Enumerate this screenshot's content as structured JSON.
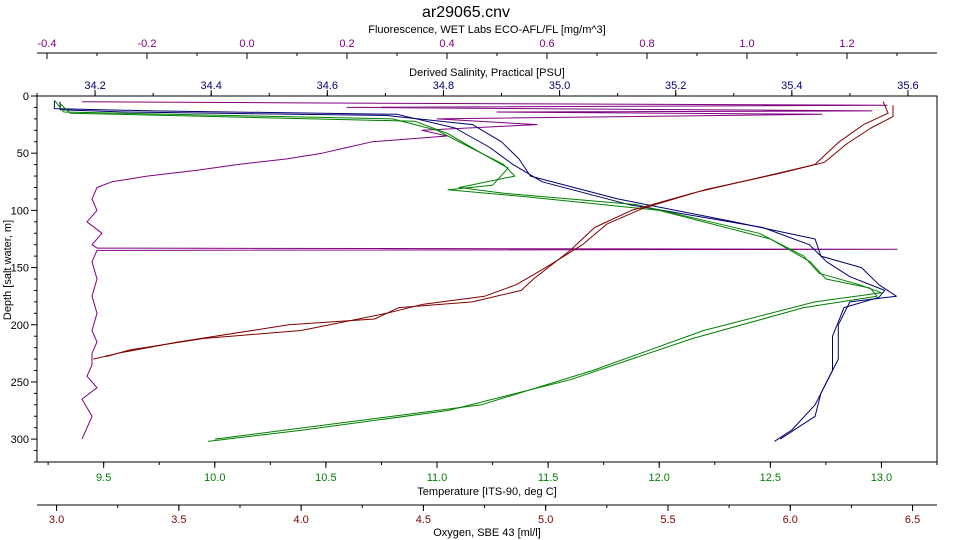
{
  "chart_data": {
    "type": "line",
    "title": "ar29065.cnv",
    "colors": {
      "fluorescence": "#800080",
      "salinity": "#00006f",
      "temperature": "#008000",
      "oxygen": "#800000",
      "frame": "#000000"
    },
    "axes": {
      "depth": {
        "label": "Depth [salt water, m]",
        "range": [
          0,
          320
        ],
        "ticks": [
          0,
          50,
          100,
          150,
          200,
          250,
          300
        ],
        "tick_labels": [
          "0",
          "50",
          "100",
          "150",
          "200",
          "250",
          "300"
        ]
      },
      "fluorescence": {
        "label": "Fluorescence, WET Labs ECO-AFL/FL [mg/m^3]",
        "position": "top",
        "range": [
          -0.42,
          1.38
        ],
        "ticks": [
          -0.4,
          -0.2,
          0.0,
          0.2,
          0.4,
          0.6,
          0.8,
          1.0,
          1.2
        ],
        "tick_labels": [
          "-0.4",
          "-0.2",
          "0.0",
          "0.2",
          "0.4",
          "0.6",
          "0.8",
          "1.0",
          "1.2"
        ]
      },
      "salinity": {
        "label": "Derived Salinity, Practical [PSU]",
        "position": "top",
        "range": [
          34.1,
          35.65
        ],
        "ticks": [
          34.2,
          34.4,
          34.6,
          34.8,
          35.0,
          35.2,
          35.4,
          35.6
        ],
        "tick_labels": [
          "34.2",
          "34.4",
          "34.6",
          "34.8",
          "35.0",
          "35.2",
          "35.4",
          "35.6"
        ]
      },
      "temperature": {
        "label": "Temperature [ITS-90, deg C]",
        "position": "bottom",
        "range": [
          9.2,
          13.25
        ],
        "ticks": [
          9.5,
          10.0,
          10.5,
          11.0,
          11.5,
          12.0,
          12.5,
          13.0
        ],
        "tick_labels": [
          "9.5",
          "10.0",
          "10.5",
          "11.0",
          "11.5",
          "12.0",
          "12.5",
          "13.0"
        ]
      },
      "oxygen": {
        "label": "Oxygen, SBE 43 [ml/l]",
        "position": "bottom",
        "range": [
          2.92,
          6.6
        ],
        "ticks": [
          3.0,
          3.5,
          4.0,
          4.5,
          5.0,
          5.5,
          6.0,
          6.5
        ],
        "tick_labels": [
          "3.0",
          "3.5",
          "4.0",
          "4.5",
          "5.0",
          "5.5",
          "6.0",
          "6.5"
        ]
      }
    },
    "series": [
      {
        "axis": "fluorescence",
        "color": "#800080",
        "points": [
          [
            -0.33,
            5
          ],
          [
            0.1,
            6
          ],
          [
            1.28,
            8
          ],
          [
            0.2,
            10
          ],
          [
            1.25,
            13
          ],
          [
            0.5,
            14
          ],
          [
            1.15,
            16
          ],
          [
            0.38,
            20
          ],
          [
            0.58,
            25
          ],
          [
            0.35,
            30
          ],
          [
            0.4,
            35
          ],
          [
            0.25,
            40
          ],
          [
            0.2,
            45
          ],
          [
            0.15,
            50
          ],
          [
            0.08,
            55
          ],
          [
            -0.02,
            60
          ],
          [
            -0.1,
            65
          ],
          [
            -0.2,
            70
          ],
          [
            -0.27,
            75
          ],
          [
            -0.3,
            80
          ],
          [
            -0.31,
            90
          ],
          [
            -0.3,
            100
          ],
          [
            -0.32,
            110
          ],
          [
            -0.29,
            120
          ],
          [
            -0.31,
            130
          ],
          [
            -0.3,
            133
          ],
          [
            1.3,
            134
          ],
          [
            -0.3,
            135
          ],
          [
            -0.31,
            145
          ],
          [
            -0.3,
            160
          ],
          [
            -0.31,
            175
          ],
          [
            -0.3,
            190
          ],
          [
            -0.31,
            205
          ],
          [
            -0.3,
            215
          ],
          [
            -0.31,
            225
          ],
          [
            -0.31,
            235
          ],
          [
            -0.32,
            245
          ],
          [
            -0.3,
            255
          ],
          [
            -0.33,
            265
          ],
          [
            -0.31,
            280
          ],
          [
            -0.32,
            290
          ],
          [
            -0.33,
            300
          ]
        ]
      },
      {
        "axis": "salinity",
        "color": "#00006f",
        "points": [
          [
            34.14,
            5
          ],
          [
            34.14,
            12
          ],
          [
            34.25,
            14
          ],
          [
            34.7,
            17
          ],
          [
            34.85,
            25
          ],
          [
            34.9,
            40
          ],
          [
            34.93,
            55
          ],
          [
            34.95,
            70
          ],
          [
            35.1,
            90
          ],
          [
            35.3,
            110
          ],
          [
            35.44,
            125
          ],
          [
            35.45,
            140
          ],
          [
            35.52,
            150
          ],
          [
            35.55,
            165
          ],
          [
            35.58,
            175
          ],
          [
            35.5,
            180
          ],
          [
            35.48,
            200
          ],
          [
            35.48,
            230
          ],
          [
            35.45,
            260
          ],
          [
            35.44,
            280
          ],
          [
            35.38,
            300
          ]
        ]
      },
      {
        "axis": "salinity",
        "color": "#00006f",
        "points": [
          [
            34.13,
            4
          ],
          [
            34.13,
            11
          ],
          [
            34.3,
            13
          ],
          [
            34.72,
            16
          ],
          [
            34.82,
            28
          ],
          [
            34.88,
            45
          ],
          [
            34.92,
            60
          ],
          [
            34.97,
            75
          ],
          [
            35.12,
            95
          ],
          [
            35.35,
            115
          ],
          [
            35.43,
            130
          ],
          [
            35.46,
            145
          ],
          [
            35.5,
            158
          ],
          [
            35.56,
            170
          ],
          [
            35.55,
            176
          ],
          [
            35.49,
            185
          ],
          [
            35.47,
            210
          ],
          [
            35.47,
            240
          ],
          [
            35.44,
            270
          ],
          [
            35.4,
            292
          ],
          [
            35.37,
            302
          ]
        ]
      },
      {
        "axis": "temperature",
        "color": "#008000",
        "points": [
          [
            9.28,
            4
          ],
          [
            9.32,
            14
          ],
          [
            10.8,
            20
          ],
          [
            11.0,
            30
          ],
          [
            11.15,
            45
          ],
          [
            11.3,
            60
          ],
          [
            11.35,
            70
          ],
          [
            11.1,
            80
          ],
          [
            11.3,
            85
          ],
          [
            11.9,
            95
          ],
          [
            12.45,
            120
          ],
          [
            12.65,
            140
          ],
          [
            12.72,
            155
          ],
          [
            12.9,
            165
          ],
          [
            13.0,
            172
          ],
          [
            12.7,
            180
          ],
          [
            12.2,
            205
          ],
          [
            11.7,
            240
          ],
          [
            11.2,
            270
          ],
          [
            10.6,
            285
          ],
          [
            10.0,
            300
          ]
        ]
      },
      {
        "axis": "temperature",
        "color": "#008000",
        "points": [
          [
            9.3,
            6
          ],
          [
            9.35,
            15
          ],
          [
            10.9,
            22
          ],
          [
            11.05,
            33
          ],
          [
            11.2,
            50
          ],
          [
            11.32,
            63
          ],
          [
            11.25,
            78
          ],
          [
            11.05,
            82
          ],
          [
            11.4,
            88
          ],
          [
            12.0,
            100
          ],
          [
            12.5,
            125
          ],
          [
            12.68,
            145
          ],
          [
            12.75,
            160
          ],
          [
            12.95,
            168
          ],
          [
            12.98,
            175
          ],
          [
            12.65,
            185
          ],
          [
            12.15,
            212
          ],
          [
            11.6,
            248
          ],
          [
            11.05,
            275
          ],
          [
            10.4,
            292
          ],
          [
            9.97,
            302
          ]
        ]
      },
      {
        "axis": "oxygen",
        "color": "#800000",
        "points": [
          [
            6.38,
            5
          ],
          [
            6.4,
            15
          ],
          [
            6.3,
            25
          ],
          [
            6.2,
            40
          ],
          [
            6.1,
            60
          ],
          [
            5.9,
            70
          ],
          [
            5.6,
            85
          ],
          [
            5.35,
            100
          ],
          [
            5.2,
            115
          ],
          [
            5.1,
            135
          ],
          [
            4.95,
            160
          ],
          [
            4.9,
            170
          ],
          [
            4.7,
            180
          ],
          [
            4.4,
            185
          ],
          [
            4.3,
            195
          ],
          [
            3.95,
            200
          ],
          [
            3.5,
            215
          ],
          [
            3.25,
            225
          ],
          [
            3.15,
            230
          ]
        ]
      },
      {
        "axis": "oxygen",
        "color": "#800000",
        "points": [
          [
            6.42,
            8
          ],
          [
            6.42,
            18
          ],
          [
            6.33,
            28
          ],
          [
            6.23,
            42
          ],
          [
            6.14,
            58
          ],
          [
            5.95,
            68
          ],
          [
            5.65,
            82
          ],
          [
            5.4,
            98
          ],
          [
            5.25,
            112
          ],
          [
            5.15,
            130
          ],
          [
            5.0,
            150
          ],
          [
            4.88,
            165
          ],
          [
            4.75,
            175
          ],
          [
            4.5,
            182
          ],
          [
            4.35,
            190
          ],
          [
            4.0,
            205
          ],
          [
            3.6,
            212
          ],
          [
            3.3,
            222
          ],
          [
            3.2,
            228
          ]
        ]
      }
    ]
  }
}
